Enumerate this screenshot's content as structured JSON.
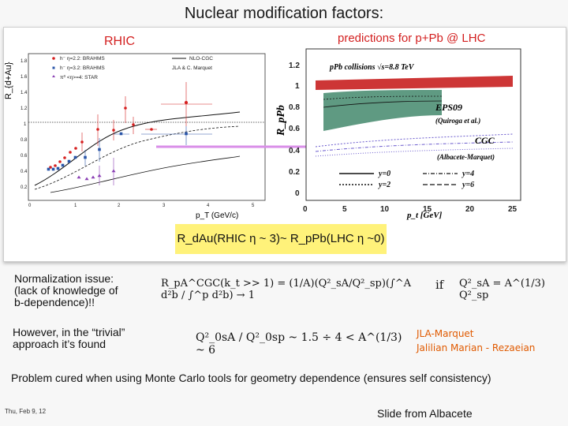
{
  "slide": {
    "title": "Nuclear modification factors:",
    "left_plot": {
      "heading": "RHIC",
      "y_axis_label": "R_{d+Au}",
      "x_axis_label": "p_T (GeV/c)",
      "legend": [
        "h⁻ η=2.2: BRAHMS",
        "h⁻ η=3.2: BRAHMS",
        "π⁰ <η>=4: STAR"
      ],
      "model_legend": [
        "NLO-CGC",
        "JLA & C. Marquet"
      ],
      "y_ticks": [
        "1.8",
        "1.6",
        "1.4",
        "1.2",
        "1",
        "0.8",
        "0.6",
        "0.4",
        "0.2"
      ],
      "x_ticks": [
        "0",
        "1",
        "2",
        "3",
        "4",
        "5"
      ]
    },
    "right_plot": {
      "heading": "predictions for p+Pb @ LHC",
      "y_axis_label": "R_pPb",
      "x_axis_label": "p_t [GeV]",
      "annotation_energy": "pPb collisions √s=8.8 TeV",
      "eps09_label": "EPS09",
      "eps09_ref": "(Quiroga et al.)",
      "cgc_label": "CGC",
      "cgc_ref": "(Albacete-Marquet)",
      "line_legend": [
        "y=0",
        "y=2",
        "y=4",
        "y=6"
      ],
      "y_ticks": [
        "1.2",
        "1",
        "0.8",
        "0.6",
        "0.4",
        "0.2",
        "0"
      ],
      "x_ticks": [
        "0",
        "5",
        "10",
        "15",
        "20",
        "25"
      ]
    },
    "equality": "R_dAu(RHIC η ~ 3)~ R_pPb(LHC η ~0)",
    "normalization": {
      "text_line1": "Normalization issue:",
      "text_line2": "(lack of knowledge of",
      "text_line3": "b-dependence)!!",
      "equation": "R_pA^CGC(k_t >> 1) = (1/A)(Q²_sA/Q²_sp)(∫^A d²b / ∫^p d²b) → 1",
      "condition_if": "if",
      "condition": "Q²_sA = A^(1/3) Q²_sp"
    },
    "trivial": {
      "text_line1": "However, in the “trivial”",
      "text_line2": "approach it’s found",
      "equation": "Q²_0sA / Q²_0sp ~ 1.5 ÷ 4 < A^(1/3) ~ 6"
    },
    "refs": [
      "JLA-Marquet",
      "Jalilian Marian - Rezaeian"
    ],
    "problem": "Problem cured when using Monte Carlo tools for geometry dependence (ensures self consistency)",
    "footer_date": "Thu, Feb 9, 12",
    "footer_credit": "Slide from Albacete"
  },
  "colors": {
    "accent_red": "#d31f1f",
    "eps09_band": "#5f9a82",
    "arrow": "#d98ee8",
    "highlight": "#fff27a",
    "refs_orange": "#e05a00"
  }
}
